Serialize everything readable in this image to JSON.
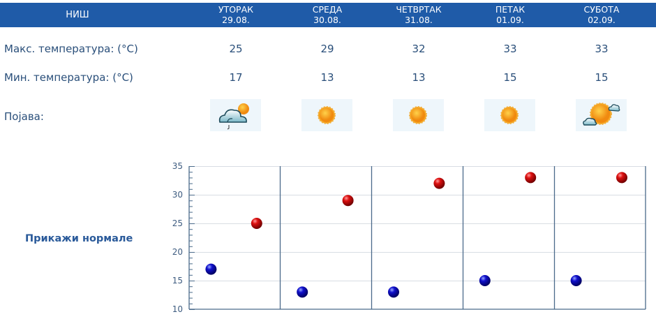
{
  "header": {
    "city": "НИШ",
    "days": [
      {
        "name": "УТОРАК",
        "date": "29.08."
      },
      {
        "name": "СРЕДА",
        "date": "30.08."
      },
      {
        "name": "ЧЕТВРТАК",
        "date": "31.08."
      },
      {
        "name": "ПЕТАК",
        "date": "01.09."
      },
      {
        "name": "СУБОТА",
        "date": "02.09."
      }
    ]
  },
  "rows": {
    "max_label": "Макс. температура: (°C)",
    "min_label": "Мин. температура: (°C)",
    "phenomenon_label": "Појава:",
    "max": [
      "25",
      "29",
      "32",
      "33",
      "33"
    ],
    "min": [
      "17",
      "13",
      "13",
      "15",
      "15"
    ],
    "icons": [
      "partly-cloudy-rain-icon",
      "sun-icon",
      "sun-icon",
      "sun-icon",
      "sun-clouds-icon"
    ]
  },
  "show_normals_label": "Прикажи нормале",
  "colors": {
    "header_bg": "#1f5ba8",
    "max_dot": "#cc0000",
    "min_dot": "#0a0aa8",
    "axis": "#4a6a8a"
  },
  "chart_data": {
    "type": "scatter",
    "categories": [
      "29.08.",
      "30.08.",
      "31.08.",
      "01.09.",
      "02.09."
    ],
    "series": [
      {
        "name": "Мин. температура",
        "color": "#0a0aa8",
        "values": [
          17,
          13,
          13,
          15,
          15
        ]
      },
      {
        "name": "Макс. температура",
        "color": "#cc0000",
        "values": [
          25,
          29,
          32,
          33,
          33
        ]
      }
    ],
    "yticks": [
      "35",
      "30",
      "25",
      "20",
      "15",
      "10"
    ],
    "ylim": [
      10,
      35
    ],
    "grid": true
  }
}
